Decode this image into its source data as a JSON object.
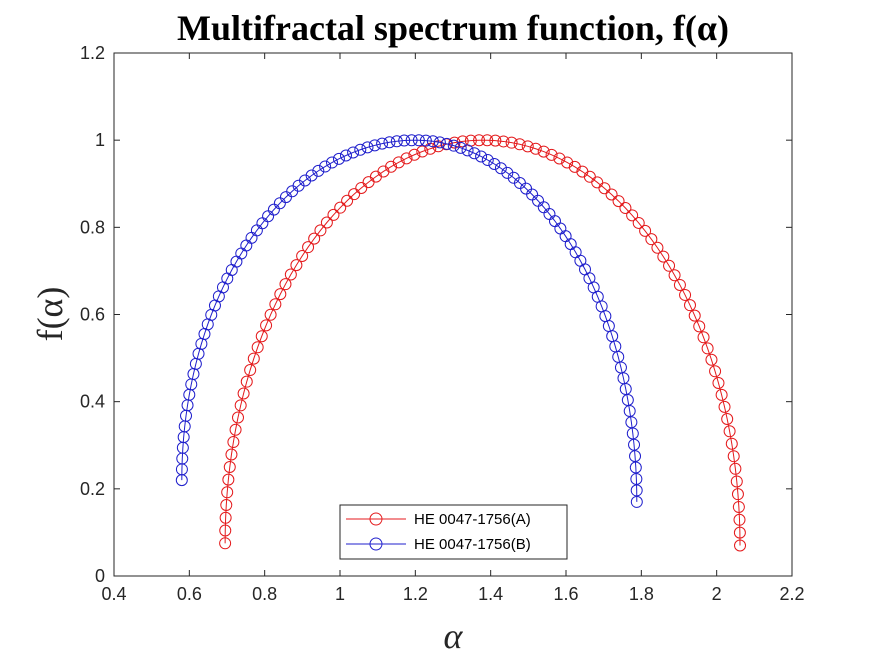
{
  "chart_data": {
    "type": "line",
    "title": "Multifractal spectrum function, f(α)",
    "xlabel": "α",
    "ylabel": "f(α)",
    "xlim": [
      0.4,
      2.2
    ],
    "ylim": [
      0,
      1.2
    ],
    "xticks": [
      "0.4",
      "0.6",
      "0.8",
      "1",
      "1.2",
      "1.4",
      "1.6",
      "1.8",
      "2",
      "2.2"
    ],
    "yticks": [
      "0",
      "0.2",
      "0.4",
      "0.6",
      "0.8",
      "1",
      "1.2"
    ],
    "grid": false,
    "legend_location": "bottom-center",
    "marker": "circle",
    "series": [
      {
        "name": "HE 0047-1756(A)",
        "color": "#e41a1c",
        "alpha_min": 0.695,
        "alpha_peak": 1.38,
        "alpha_max": 2.062,
        "f_left_end": 0.075,
        "f_peak": 1.0,
        "f_right_end": 0.07,
        "points": 100
      },
      {
        "name": "HE 0047-1756(B)",
        "color": "#1f1fcc",
        "alpha_min": 0.58,
        "alpha_peak": 1.2,
        "alpha_max": 1.788,
        "f_left_end": 0.22,
        "f_peak": 1.0,
        "f_right_end": 0.17,
        "points": 100
      }
    ]
  }
}
